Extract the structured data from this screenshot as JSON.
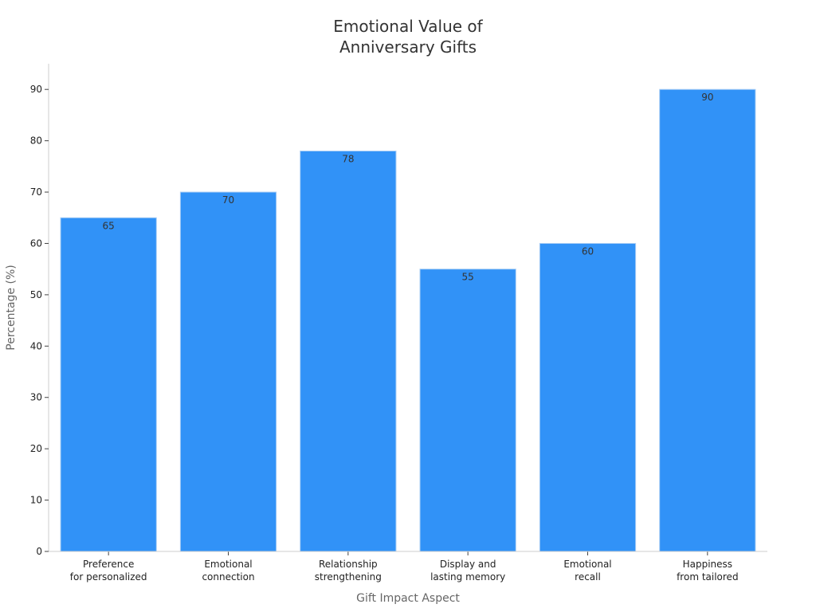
{
  "chart_data": {
    "type": "bar",
    "title": [
      "Emotional Value of",
      "Anniversary Gifts"
    ],
    "xlabel": "Gift Impact Aspect",
    "ylabel": "Percentage (%)",
    "categories": [
      [
        "Preference",
        "for personalized"
      ],
      [
        "Emotional",
        "connection"
      ],
      [
        "Relationship",
        "strengthening"
      ],
      [
        "Display and",
        "lasting memory"
      ],
      [
        "Emotional",
        "recall"
      ],
      [
        "Happiness",
        "from tailored"
      ]
    ],
    "values": [
      65,
      70,
      78,
      55,
      60,
      90
    ],
    "data_labels": [
      "65",
      "70",
      "78",
      "55",
      "60",
      "90"
    ],
    "ylim": [
      0,
      95
    ],
    "yticks": [
      0,
      10,
      20,
      30,
      40,
      50,
      60,
      70,
      80,
      90
    ],
    "grid": false,
    "bar_color": "#3192f7",
    "bar_edge_color": "#a9cdf5"
  }
}
